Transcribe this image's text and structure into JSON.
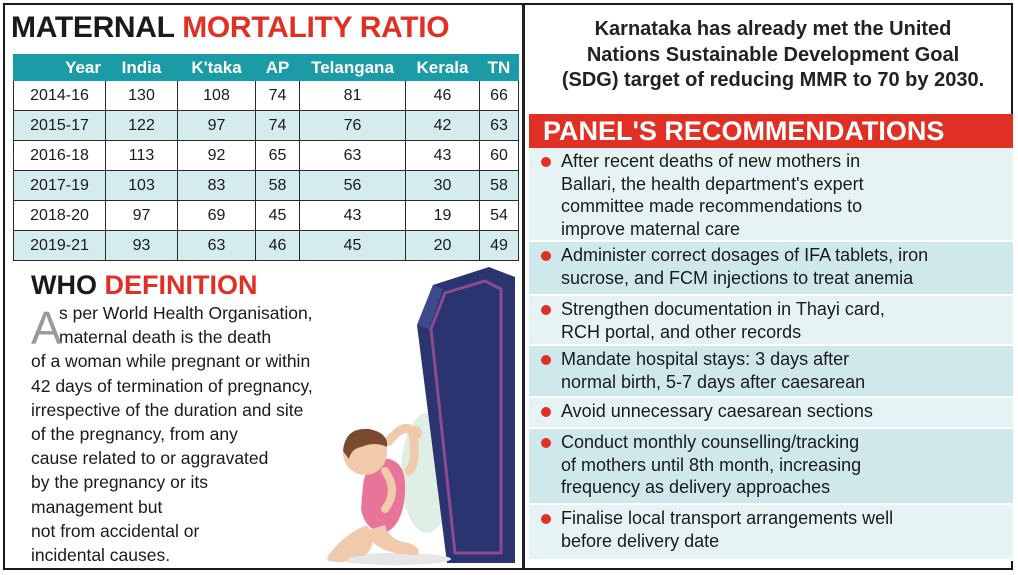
{
  "mmr": {
    "title_black": "MATERNAL",
    "title_red": "MORTALITY RATIO",
    "headers": [
      "Year",
      "India",
      "K'taka",
      "AP",
      "Telangana",
      "Kerala",
      "TN"
    ],
    "rows": [
      [
        "2014-16",
        "130",
        "108",
        "74",
        "81",
        "46",
        "66"
      ],
      [
        "2015-17",
        "122",
        "97",
        "74",
        "76",
        "42",
        "63"
      ],
      [
        "2016-18",
        "113",
        "92",
        "65",
        "63",
        "43",
        "60"
      ],
      [
        "2017-19",
        "103",
        "83",
        "58",
        "56",
        "30",
        "58"
      ],
      [
        "2018-20",
        "97",
        "69",
        "45",
        "43",
        "19",
        "54"
      ],
      [
        "2019-21",
        "93",
        "63",
        "46",
        "45",
        "20",
        "49"
      ]
    ]
  },
  "who": {
    "title_black": "WHO",
    "title_red": "DEFINITION",
    "dropcap": "A",
    "first_line": "s per World Health Organisation,",
    "second_line": "maternal death is the death",
    "lines": [
      "of a woman while pregnant or within",
      "42 days of termination of pregnancy,",
      "irrespective of the duration and site",
      "of the pregnancy, from any",
      "cause related to or aggravated",
      "by the pregnancy or its",
      "management but",
      "not from accidental or",
      "incidental causes."
    ]
  },
  "sdg": {
    "lines": [
      "Karnataka has already met the United",
      "Nations Sustainable Development Goal",
      "(SDG) target of reducing MMR to 70 by 2030."
    ]
  },
  "panel": {
    "title": "PANEL'S RECOMMENDATIONS",
    "items": [
      [
        "After recent deaths of new mothers in",
        "Ballari, the health department's expert",
        "committee made recommendations to",
        "improve maternal care"
      ],
      [
        "Administer correct dosages of IFA tablets, iron",
        "sucrose, and FCM injections to treat anemia"
      ],
      [
        "Strengthen documentation in Thayi card,",
        "RCH portal, and other records"
      ],
      [
        "Mandate hospital stays: 3 days after",
        "normal birth, 5-7 days after caesarean"
      ],
      [
        "Avoid unnecessary caesarean sections"
      ],
      [
        "Conduct monthly counselling/tracking",
        "of mothers until 8th month, increasing",
        "frequency as delivery approaches"
      ],
      [
        "Finalise local transport arrangements well",
        "before delivery date"
      ]
    ]
  },
  "colors": {
    "accent_red": "#e03024",
    "table_header_teal": "#1a9ba6",
    "row_tint": "#d5ecef",
    "coffin_navy": "#2a3470",
    "dress_pink": "#e8749a"
  }
}
